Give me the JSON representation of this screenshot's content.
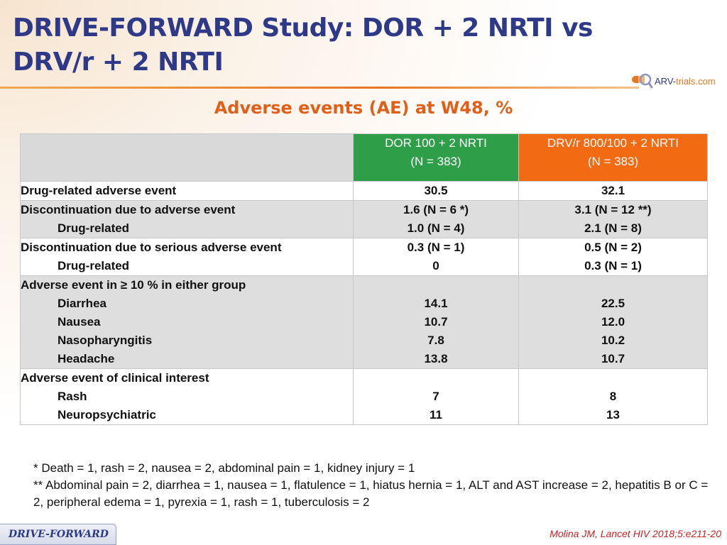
{
  "slide": {
    "title": "DRIVE-FORWARD Study: DOR + 2 NRTI vs DRV/r + 2 NRTI",
    "subtitle": "Adverse events (AE) at W48, %",
    "logo": {
      "prefix": "ARV-",
      "middle": "trials",
      "suffix": ".com",
      "icon": "capsule-magnifier-icon"
    },
    "colors": {
      "title": "#2e3a87",
      "accent": "#e0601a",
      "dor": "#2e9e48",
      "drv": "#f26a12"
    }
  },
  "table": {
    "headers": {
      "dor": [
        "DOR 100 + 2 NRTI",
        "(N = 383)"
      ],
      "drv": [
        "DRV/r 800/100 + 2 NRTI",
        "(N = 383)"
      ]
    },
    "rows": [
      {
        "labels": [
          {
            "text": "Drug-related adverse event",
            "indent": false
          }
        ],
        "dor": [
          "30.5"
        ],
        "drv": [
          "32.1"
        ]
      },
      {
        "labels": [
          {
            "text": "Discontinuation due to adverse event",
            "indent": false
          },
          {
            "text": "Drug-related",
            "indent": true
          }
        ],
        "dor": [
          "1.6 (N = 6 *)",
          "1.0 (N = 4)"
        ],
        "drv": [
          "3.1 (N = 12 **)",
          "2.1 (N = 8)"
        ]
      },
      {
        "labels": [
          {
            "text": "Discontinuation due to serious adverse event",
            "indent": false
          },
          {
            "text": "Drug-related",
            "indent": true
          }
        ],
        "dor": [
          "0.3 (N = 1)",
          "0"
        ],
        "drv": [
          "0.5 (N = 2)",
          "0.3 (N = 1)"
        ]
      },
      {
        "labels": [
          {
            "text": " Adverse event in ≥ 10 % in either group",
            "indent": false
          },
          {
            "text": "Diarrhea",
            "indent": true
          },
          {
            "text": "Nausea",
            "indent": true
          },
          {
            "text": "Nasopharyngitis",
            "indent": true
          },
          {
            "text": "Headache",
            "indent": true
          }
        ],
        "dor": [
          "",
          "14.1",
          "10.7",
          "7.8",
          "13.8"
        ],
        "drv": [
          "",
          "22.5",
          "12.0",
          "10.2",
          "10.7"
        ]
      },
      {
        "labels": [
          {
            "text": "Adverse event of clinical interest",
            "indent": false
          },
          {
            "text": "Rash",
            "indent": true
          },
          {
            "text": "Neuropsychiatric",
            "indent": true
          }
        ],
        "dor": [
          "",
          "7",
          "11"
        ],
        "drv": [
          "",
          "8",
          "13"
        ]
      }
    ]
  },
  "footnotes": [
    "* Death = 1, rash = 2, nausea = 2, abdominal pain = 1, kidney injury = 1",
    "** Abdominal pain = 2, diarrhea = 1, nausea = 1, flatulence = 1, hiatus hernia = 1, ALT and AST increase = 2, hepatitis B or C = 2, peripheral edema = 1, pyrexia = 1, rash = 1, tuberculosis = 2"
  ],
  "footer": {
    "tab_label": "DRIVE-FORWARD",
    "citation": "Molina JM, Lancet HIV 2018;5:e211-20"
  }
}
